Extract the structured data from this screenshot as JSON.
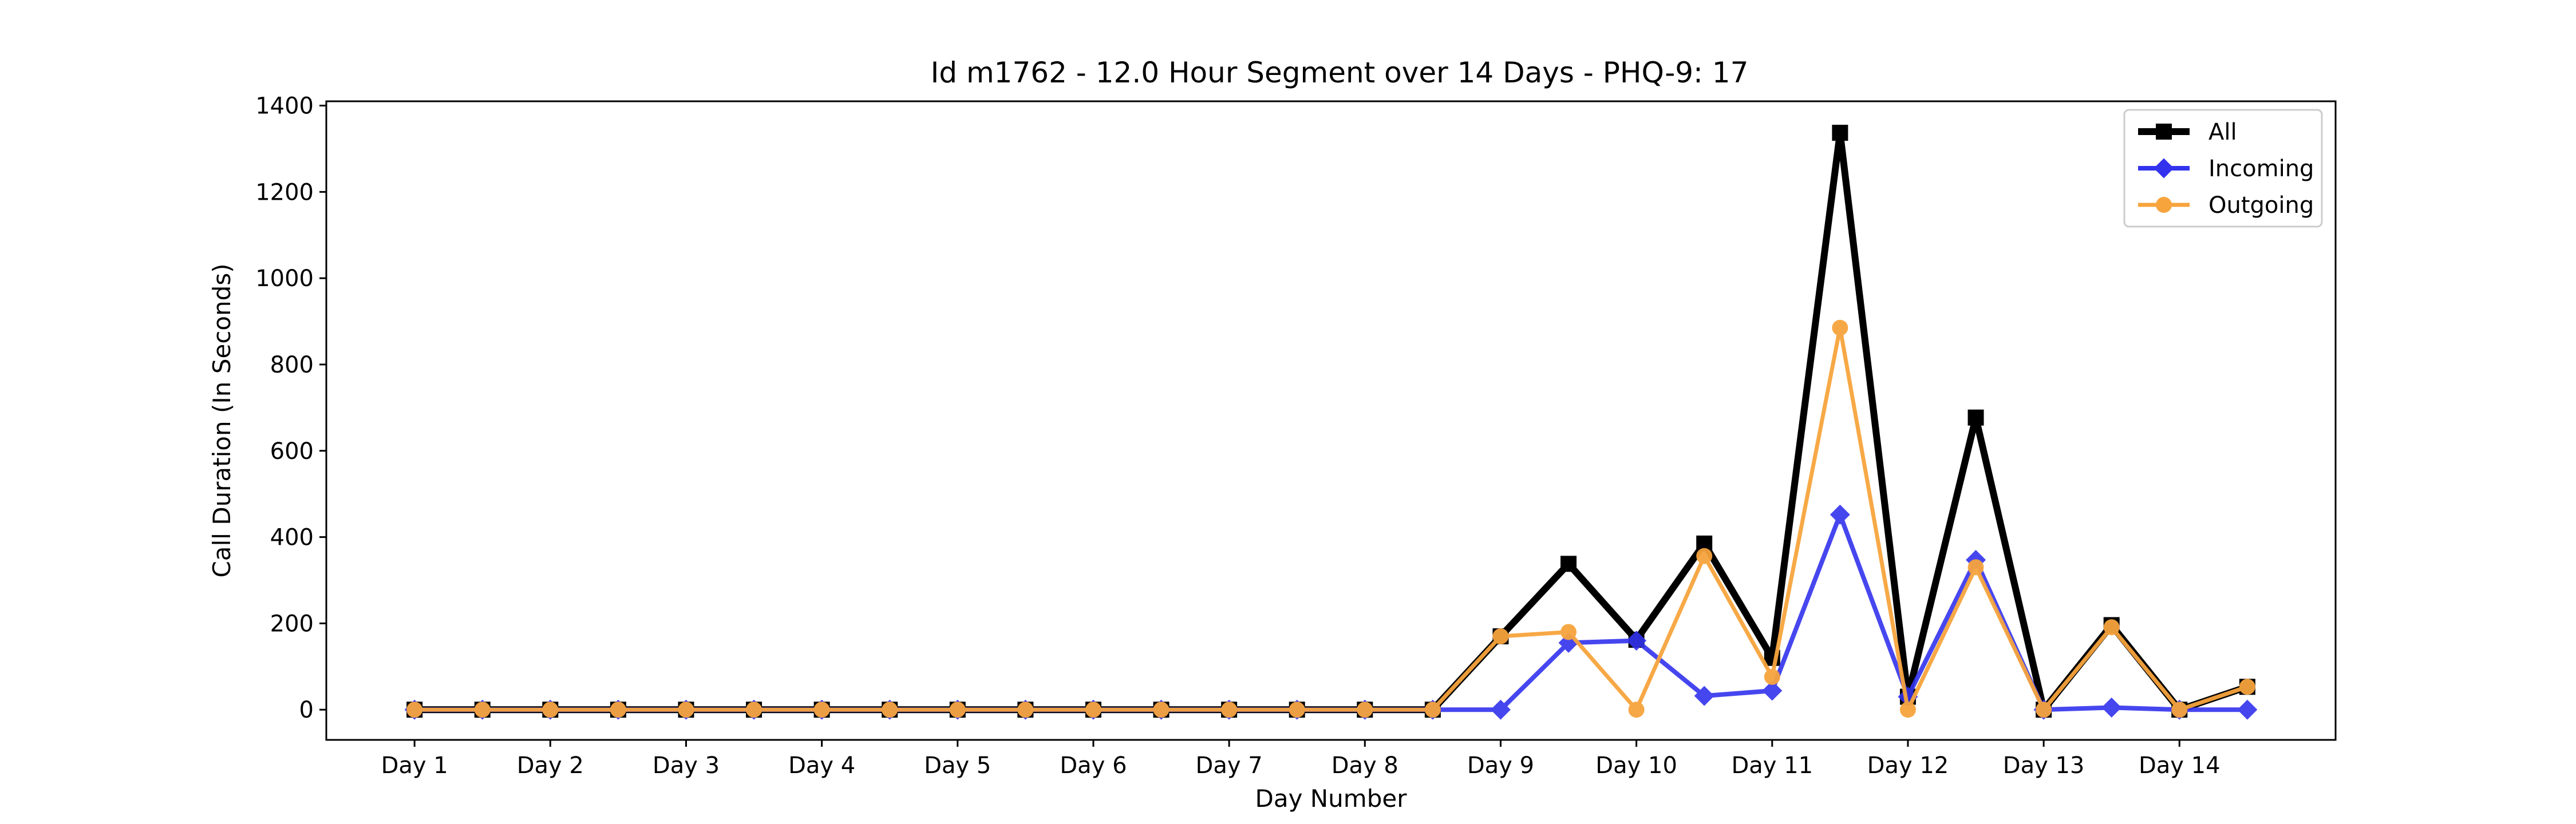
{
  "chart_data": {
    "type": "line",
    "title": "Id m1762 - 12.0 Hour Segment over 14 Days - PHQ-9: 17",
    "xlabel": "Day Number",
    "ylabel": "Call Duration (In Seconds)",
    "ylim": [
      -70,
      1410
    ],
    "yticks": [
      0,
      200,
      400,
      600,
      800,
      1000,
      1200,
      1400
    ],
    "categories": [
      "Day 1",
      "Day 2",
      "Day 3",
      "Day 4",
      "Day 5",
      "Day 6",
      "Day 7",
      "Day 8",
      "Day 9",
      "Day 10",
      "Day 11",
      "Day 12",
      "Day 13",
      "Day 14"
    ],
    "x": [
      0,
      0.5,
      1,
      1.5,
      2,
      2.5,
      3,
      3.5,
      4,
      4.5,
      5,
      5.5,
      6,
      6.5,
      7,
      7.5,
      8,
      8.5,
      9,
      9.5,
      10,
      10.5,
      11,
      11.5,
      12,
      12.5,
      13,
      13.5
    ],
    "grid": false,
    "legend_position": "top-right",
    "series": [
      {
        "name": "All",
        "color": "#000000",
        "marker": "square",
        "values": [
          0,
          0,
          0,
          0,
          0,
          0,
          0,
          0,
          0,
          0,
          0,
          0,
          0,
          0,
          0,
          0,
          170,
          338,
          162,
          385,
          120,
          1337,
          30,
          677,
          0,
          196,
          0,
          53
        ]
      },
      {
        "name": "Incoming",
        "color": "#3333ee",
        "marker": "diamond",
        "values": [
          0,
          0,
          0,
          0,
          0,
          0,
          0,
          0,
          0,
          0,
          0,
          0,
          0,
          0,
          0,
          0,
          0,
          155,
          160,
          32,
          44,
          452,
          30,
          347,
          0,
          5,
          0,
          0
        ]
      },
      {
        "name": "Outgoing",
        "color": "#f7a43d",
        "marker": "circle",
        "values": [
          0,
          0,
          0,
          0,
          0,
          0,
          0,
          0,
          0,
          0,
          0,
          0,
          0,
          0,
          0,
          0,
          170,
          180,
          0,
          356,
          76,
          885,
          0,
          330,
          0,
          191,
          0,
          53
        ]
      }
    ]
  }
}
